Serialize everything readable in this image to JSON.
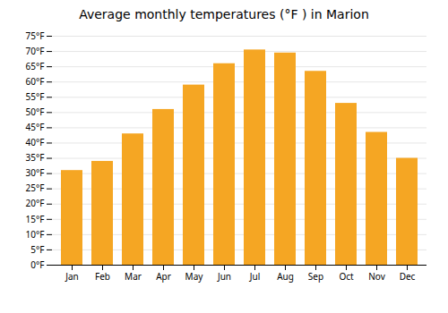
{
  "chart_data": {
    "type": "bar",
    "title": "Average monthly temperatures (°F ) in Marion",
    "categories": [
      "Jan",
      "Feb",
      "Mar",
      "Apr",
      "May",
      "Jun",
      "Jul",
      "Aug",
      "Sep",
      "Oct",
      "Nov",
      "Dec"
    ],
    "values": [
      31,
      34,
      43,
      51,
      59,
      66,
      70.5,
      69.5,
      63.5,
      53,
      43.5,
      35
    ],
    "color": "#F5A623",
    "ylim": [
      0,
      75
    ],
    "yticks": [
      {
        "value": 0,
        "label": "0°F"
      },
      {
        "value": 5,
        "label": "5°F"
      },
      {
        "value": 10,
        "label": "10°F"
      },
      {
        "value": 15,
        "label": "15°F"
      },
      {
        "value": 20,
        "label": "20°F"
      },
      {
        "value": 25,
        "label": "25°F"
      },
      {
        "value": 30,
        "label": "30°F"
      },
      {
        "value": 35,
        "label": "35°F"
      },
      {
        "value": 40,
        "label": "40°F"
      },
      {
        "value": 45,
        "label": "45°F"
      },
      {
        "value": 50,
        "label": "50°F"
      },
      {
        "value": 55,
        "label": "55°F"
      },
      {
        "value": 60,
        "label": "60°F"
      },
      {
        "value": 65,
        "label": "65°F"
      },
      {
        "value": 70,
        "label": "70°F"
      },
      {
        "value": 75,
        "label": "75°F"
      }
    ],
    "grid": true
  }
}
